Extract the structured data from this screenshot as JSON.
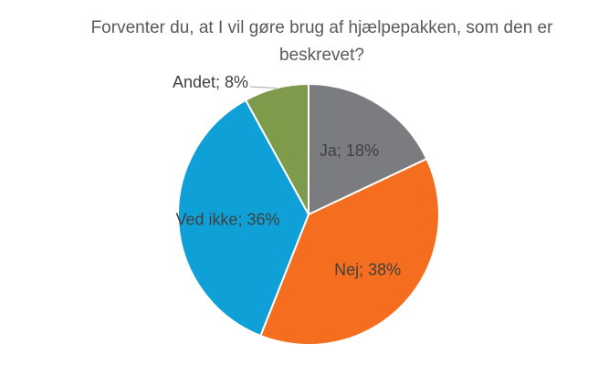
{
  "chart_data": {
    "type": "pie",
    "title": "Forventer du, at I vil gøre brug af hjælpepakken, som den er beskrevet?",
    "categories": [
      "Ja",
      "Nej",
      "Ved ikke",
      "Andet"
    ],
    "values": [
      18,
      38,
      36,
      8
    ],
    "labels": [
      "Ja; 18%",
      "Nej; 38%",
      "Ved ikke; 36%",
      "Andet; 8%"
    ],
    "colors": [
      "#7a7c80",
      "#f56d1e",
      "#0fa0d8",
      "#7d9b4a"
    ],
    "legend": "none"
  }
}
